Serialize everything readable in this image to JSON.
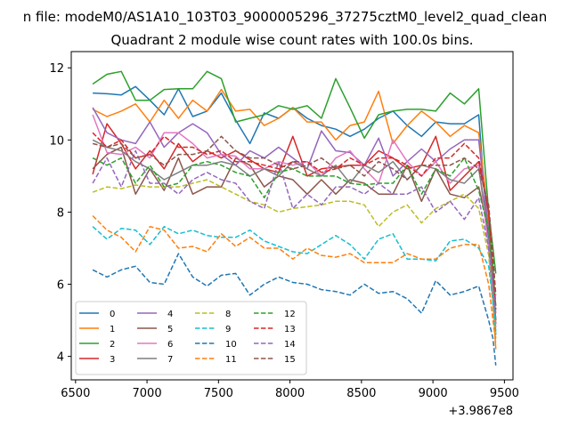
{
  "chart_data": {
    "type": "line",
    "suptitle": "n file: modeM0/AS1A10_103T03_9000005296_37275cztM0_level2_quad_clean",
    "title": "Quadrant 2 module wise count rates with 100.0s bins.",
    "xlabel": "",
    "ylabel": "",
    "x_offset_label": "+3.9867e8",
    "xlim": [
      6470,
      9560
    ],
    "ylim": [
      3.35,
      12.45
    ],
    "xticks": [
      6500,
      7000,
      7500,
      8000,
      8500,
      9000,
      9500
    ],
    "yticks": [
      4,
      6,
      8,
      10,
      12
    ],
    "grid": false,
    "legend": {
      "placement": "lower-left",
      "columns": 4
    },
    "x": [
      6620,
      6720,
      6820,
      6920,
      7020,
      7120,
      7220,
      7320,
      7420,
      7520,
      7620,
      7720,
      7820,
      7920,
      8020,
      8120,
      8220,
      8320,
      8420,
      8520,
      8620,
      8720,
      8820,
      8920,
      9020,
      9120,
      9220,
      9320,
      9390,
      9420,
      9440
    ],
    "series": [
      {
        "name": "0",
        "color": "#1f77b4",
        "dash": "solid",
        "values": [
          11.3,
          11.28,
          11.25,
          11.48,
          11.1,
          10.7,
          11.42,
          10.65,
          10.8,
          11.3,
          10.55,
          9.9,
          10.75,
          10.6,
          10.9,
          10.6,
          10.4,
          10.3,
          10.1,
          10.3,
          10.6,
          10.8,
          10.4,
          10.1,
          10.5,
          10.45,
          10.45,
          10.7,
          7.0,
          5.5,
          4.6
        ]
      },
      {
        "name": "1",
        "color": "#ff7f0e",
        "dash": "solid",
        "values": [
          10.85,
          10.65,
          10.8,
          11.0,
          10.5,
          11.1,
          10.6,
          11.1,
          10.8,
          11.4,
          10.8,
          10.85,
          10.4,
          10.6,
          10.9,
          10.5,
          10.5,
          10.0,
          10.4,
          10.5,
          11.35,
          9.9,
          10.4,
          10.8,
          10.5,
          10.1,
          10.4,
          10.2,
          7.8,
          5.5,
          4.2
        ]
      },
      {
        "name": "2",
        "color": "#2ca02c",
        "dash": "solid",
        "values": [
          11.55,
          11.82,
          11.9,
          11.1,
          11.1,
          11.4,
          11.42,
          11.42,
          11.9,
          11.7,
          10.5,
          10.6,
          10.7,
          10.95,
          10.85,
          10.95,
          10.6,
          11.7,
          10.9,
          10.05,
          10.7,
          10.8,
          10.85,
          10.85,
          10.8,
          11.3,
          11.0,
          11.42,
          8.0,
          7.0,
          6.3
        ]
      },
      {
        "name": "3",
        "color": "#d62728",
        "dash": "solid",
        "values": [
          9.05,
          10.45,
          9.9,
          9.2,
          9.7,
          9.2,
          9.9,
          9.4,
          9.7,
          9.5,
          9.7,
          9.45,
          9.2,
          9.1,
          10.1,
          9.0,
          9.2,
          9.25,
          9.3,
          9.3,
          9.7,
          9.5,
          9.2,
          9.3,
          10.1,
          8.6,
          9.0,
          9.4,
          8.0,
          6.0,
          5.0
        ]
      },
      {
        "name": "4",
        "color": "#9467bd",
        "dash": "solid",
        "values": [
          10.9,
          10.2,
          10.0,
          9.9,
          10.5,
          9.8,
          10.2,
          10.45,
          10.2,
          9.6,
          9.3,
          9.7,
          9.5,
          9.8,
          9.5,
          9.2,
          10.25,
          9.7,
          9.65,
          9.3,
          10.05,
          9.0,
          9.4,
          9.75,
          9.4,
          9.75,
          10.0,
          10.0,
          7.5,
          6.0,
          5.0
        ]
      },
      {
        "name": "5",
        "color": "#8c564b",
        "dash": "solid",
        "values": [
          9.2,
          9.6,
          9.8,
          8.5,
          9.2,
          8.6,
          9.5,
          8.5,
          8.7,
          8.7,
          9.5,
          9.3,
          8.7,
          9.0,
          8.9,
          8.5,
          8.9,
          8.5,
          8.9,
          8.8,
          8.5,
          8.5,
          9.3,
          8.3,
          9.2,
          8.5,
          8.4,
          8.7,
          7.5,
          6.0,
          4.9
        ]
      },
      {
        "name": "6",
        "color": "#e377c2",
        "dash": "solid",
        "values": [
          10.7,
          9.65,
          9.6,
          9.8,
          9.5,
          10.2,
          10.2,
          9.9,
          9.5,
          9.6,
          9.55,
          9.2,
          9.2,
          9.4,
          9.3,
          9.4,
          9.0,
          9.5,
          9.7,
          9.2,
          8.8,
          10.0,
          9.4,
          9.0,
          9.4,
          8.8,
          9.2,
          9.3,
          7.0,
          5.8,
          4.8
        ]
      },
      {
        "name": "7",
        "color": "#7f7f7f",
        "dash": "solid",
        "values": [
          10.0,
          9.8,
          9.7,
          9.4,
          9.2,
          8.9,
          9.1,
          9.3,
          9.3,
          9.4,
          9.3,
          9.0,
          9.2,
          9.0,
          9.4,
          9.2,
          9.0,
          9.3,
          8.8,
          9.3,
          9.1,
          9.4,
          8.9,
          9.3,
          9.2,
          8.9,
          8.8,
          9.2,
          7.5,
          6.0,
          5.0
        ]
      },
      {
        "name": "8",
        "color": "#bcbd22",
        "dash": "dashed",
        "values": [
          8.55,
          8.7,
          8.65,
          8.75,
          8.7,
          8.7,
          8.7,
          8.8,
          8.9,
          8.7,
          8.5,
          8.3,
          8.2,
          8.0,
          8.1,
          8.15,
          8.2,
          8.3,
          8.3,
          8.2,
          7.6,
          8.0,
          8.2,
          7.7,
          8.1,
          8.3,
          8.5,
          8.1,
          6.8,
          5.5,
          4.5
        ]
      },
      {
        "name": "9",
        "color": "#17becf",
        "dash": "dashed",
        "values": [
          7.6,
          7.25,
          7.55,
          7.5,
          7.1,
          7.6,
          7.4,
          7.5,
          7.35,
          7.3,
          7.3,
          7.5,
          7.2,
          7.05,
          6.9,
          6.85,
          7.1,
          7.35,
          7.1,
          6.7,
          7.25,
          7.4,
          6.7,
          6.7,
          6.65,
          7.2,
          7.25,
          7.0,
          6.5,
          5.5,
          4.7
        ]
      },
      {
        "name": "10",
        "color": "#1f77b4",
        "dash": "dashed",
        "values": [
          6.4,
          6.2,
          6.4,
          6.5,
          6.05,
          6.0,
          6.85,
          6.2,
          5.95,
          6.25,
          6.3,
          5.7,
          6.0,
          6.2,
          6.05,
          6.0,
          5.85,
          5.8,
          5.7,
          6.0,
          5.75,
          5.8,
          5.6,
          5.2,
          6.1,
          5.7,
          5.8,
          5.95,
          5.0,
          4.5,
          3.75
        ]
      },
      {
        "name": "11",
        "color": "#ff7f0e",
        "dash": "dashed",
        "values": [
          7.9,
          7.5,
          7.3,
          6.9,
          7.6,
          7.5,
          7.0,
          7.05,
          6.9,
          7.4,
          7.05,
          7.3,
          7.0,
          7.0,
          6.7,
          7.0,
          6.8,
          6.75,
          6.85,
          6.6,
          6.6,
          6.6,
          6.85,
          6.7,
          6.7,
          7.0,
          7.1,
          7.1,
          6.0,
          5.0,
          4.4
        ]
      },
      {
        "name": "12",
        "color": "#2ca02c",
        "dash": "dashed",
        "values": [
          9.5,
          9.3,
          9.5,
          8.8,
          9.3,
          8.7,
          8.8,
          9.3,
          9.4,
          9.3,
          9.1,
          9.0,
          8.4,
          9.1,
          9.2,
          9.0,
          9.0,
          9.0,
          8.8,
          8.75,
          8.8,
          8.8,
          9.3,
          8.5,
          9.2,
          9.0,
          9.5,
          8.6,
          7.5,
          6.5,
          5.4
        ]
      },
      {
        "name": "13",
        "color": "#d62728",
        "dash": "dashed",
        "values": [
          10.2,
          9.8,
          10.0,
          9.5,
          9.6,
          10.1,
          9.8,
          9.8,
          9.6,
          9.7,
          9.4,
          9.4,
          9.3,
          9.2,
          9.4,
          9.4,
          9.1,
          9.2,
          9.5,
          9.3,
          9.5,
          9.5,
          9.3,
          9.0,
          9.5,
          9.5,
          9.9,
          9.5,
          8.0,
          6.5,
          5.3
        ]
      },
      {
        "name": "14",
        "color": "#9467bd",
        "dash": "dashed",
        "values": [
          8.8,
          9.5,
          8.7,
          9.7,
          8.8,
          8.8,
          8.5,
          8.9,
          9.1,
          8.9,
          8.8,
          8.3,
          8.1,
          9.4,
          8.1,
          8.5,
          8.2,
          8.7,
          8.7,
          8.5,
          8.8,
          8.5,
          8.5,
          8.7,
          8.0,
          8.3,
          7.8,
          8.4,
          7.0,
          6.0,
          5.2
        ]
      },
      {
        "name": "15",
        "color": "#8c564b",
        "dash": "dashed",
        "values": [
          9.9,
          9.8,
          9.9,
          9.5,
          9.6,
          9.3,
          9.6,
          9.6,
          9.7,
          10.1,
          9.7,
          9.5,
          9.5,
          9.3,
          9.2,
          9.3,
          9.5,
          9.2,
          9.3,
          9.0,
          9.4,
          9.2,
          8.9,
          9.3,
          9.3,
          9.3,
          9.5,
          9.2,
          8.2,
          6.8,
          5.7
        ]
      }
    ]
  }
}
